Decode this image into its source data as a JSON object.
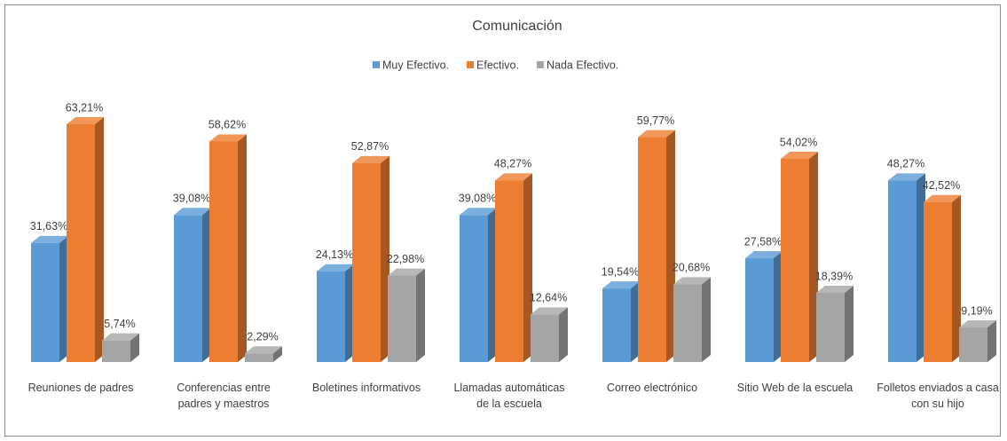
{
  "chart_data": {
    "type": "bar3d",
    "title": "Comunicación",
    "categories": [
      "Reuniones de padres",
      "Conferencias entre padres y maestros",
      "Boletines informativos",
      "Llamadas automáticas de la escuela",
      "Correo electrónico",
      "Sitio Web de la escuela",
      "Folletos enviados a casa con su hijo"
    ],
    "series": [
      {
        "name": "Muy Efectivo.",
        "color": "#5b9bd5",
        "values": [
          31.63,
          39.08,
          24.13,
          39.08,
          19.54,
          27.58,
          48.27
        ],
        "value_labels": [
          "31,63%",
          "39,08%",
          "24,13%",
          "39,08%",
          "19,54%",
          "27,58%",
          "48,27%"
        ]
      },
      {
        "name": "Efectivo.",
        "color": "#ed7d31",
        "values": [
          63.21,
          58.62,
          52.87,
          48.27,
          59.77,
          54.02,
          42.52
        ],
        "value_labels": [
          "63,21%",
          "58,62%",
          "52,87%",
          "48,27%",
          "59,77%",
          "54,02%",
          "42,52%"
        ]
      },
      {
        "name": "Nada Efectivo.",
        "color": "#a5a5a5",
        "values": [
          5.74,
          2.29,
          22.98,
          12.64,
          20.68,
          18.39,
          9.19
        ],
        "value_labels": [
          "5,74%",
          "2,29%",
          "22,98%",
          "12,64%",
          "20,68%",
          "18,39%",
          "9,19%"
        ]
      }
    ],
    "legend": "top"
  }
}
